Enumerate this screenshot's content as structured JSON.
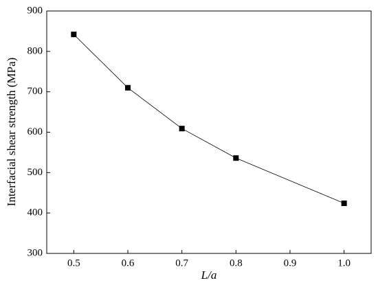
{
  "chart_data": {
    "type": "line",
    "x_label": "L/a",
    "y_label": "Interfacial shear strength (MPa)",
    "x": [
      0.5,
      0.6,
      0.7,
      0.8,
      1.0
    ],
    "series": [
      {
        "name": "Interfacial shear strength",
        "color": "#000000",
        "values": [
          842,
          710,
          609,
          536,
          424
        ]
      }
    ],
    "xlim": [
      0.45,
      1.05
    ],
    "ylim": [
      300,
      900
    ],
    "xticks": [
      0.5,
      0.6,
      0.7,
      0.8,
      0.9,
      {
        "value": 1.0,
        "label": "1.0"
      }
    ],
    "yticks": [
      300,
      400,
      500,
      600,
      700,
      800,
      900
    ],
    "grid": false
  }
}
